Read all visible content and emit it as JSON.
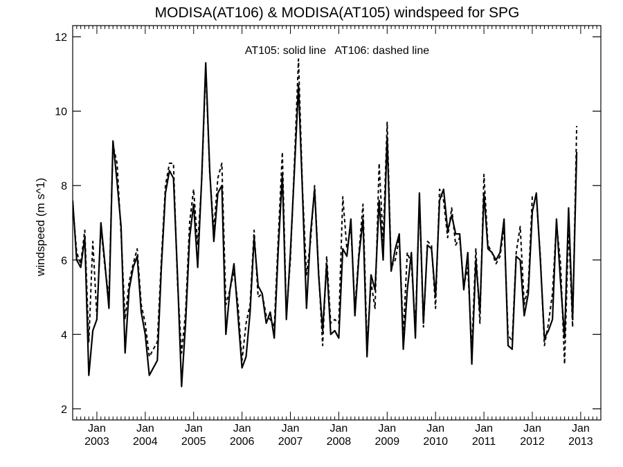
{
  "chart_data": {
    "type": "line",
    "title": "MODISA(AT106) & MODISA(AT105)  windspeed for SPG",
    "annotation": "AT105: solid line   AT106: dashed line",
    "ylabel": "windspeed (m s^1)",
    "xlabel": "",
    "ylim": [
      1.7,
      12.3
    ],
    "y_ticks": [
      2,
      4,
      6,
      8,
      10,
      12
    ],
    "x_range": [
      "2002-07",
      "2013-06"
    ],
    "x_ticks": [
      {
        "date": "2003-01",
        "month": "Jan",
        "year": "2003"
      },
      {
        "date": "2004-01",
        "month": "Jan",
        "year": "2004"
      },
      {
        "date": "2005-01",
        "month": "Jan",
        "year": "2005"
      },
      {
        "date": "2006-01",
        "month": "Jan",
        "year": "2006"
      },
      {
        "date": "2007-01",
        "month": "Jan",
        "year": "2007"
      },
      {
        "date": "2008-01",
        "month": "Jan",
        "year": "2008"
      },
      {
        "date": "2009-01",
        "month": "Jan",
        "year": "2009"
      },
      {
        "date": "2010-01",
        "month": "Jan",
        "year": "2010"
      },
      {
        "date": "2011-01",
        "month": "Jan",
        "year": "2011"
      },
      {
        "date": "2012-01",
        "month": "Jan",
        "year": "2012"
      },
      {
        "date": "2013-01",
        "month": "Jan",
        "year": "2013"
      }
    ],
    "grid": false,
    "start_date": "2002-07",
    "interval": "monthly",
    "series": [
      {
        "name": "AT105",
        "line_style": "solid",
        "values": [
          7.6,
          6.0,
          5.8,
          6.6,
          2.9,
          4.1,
          4.4,
          7.0,
          5.9,
          4.7,
          9.2,
          8.1,
          6.9,
          3.5,
          5.2,
          5.8,
          6.1,
          4.6,
          4.0,
          2.9,
          3.1,
          3.3,
          5.8,
          7.8,
          8.4,
          8.2,
          5.6,
          2.6,
          4.3,
          6.6,
          7.5,
          5.8,
          8.2,
          11.3,
          8.4,
          6.5,
          7.8,
          8.0,
          4.0,
          5.2,
          5.9,
          4.5,
          3.1,
          3.4,
          4.6,
          6.6,
          5.3,
          5.1,
          4.3,
          4.6,
          3.9,
          6.3,
          8.3,
          4.4,
          6.2,
          8.4,
          10.7,
          7.8,
          4.7,
          6.7,
          7.9,
          5.6,
          4.1,
          5.9,
          4.0,
          4.1,
          3.9,
          6.3,
          6.1,
          7.1,
          4.5,
          6.1,
          7.1,
          3.4,
          5.6,
          5.2,
          7.6,
          6.0,
          9.3,
          5.7,
          6.3,
          6.7,
          3.6,
          5.2,
          6.2,
          3.9,
          7.8,
          4.3,
          6.4,
          6.3,
          5.0,
          7.6,
          7.9,
          6.8,
          7.2,
          6.7,
          6.7,
          5.2,
          6.2,
          3.2,
          6.0,
          4.6,
          7.8,
          6.3,
          6.2,
          6.0,
          6.2,
          7.1,
          3.7,
          3.6,
          6.1,
          6.0,
          4.5,
          5.1,
          7.3,
          7.8,
          6.0,
          3.9,
          4.1,
          4.4,
          7.1,
          5.4,
          3.9,
          7.4,
          4.4,
          8.9
        ]
      },
      {
        "name": "AT106",
        "line_style": "dashed",
        "values": [
          7.5,
          6.2,
          5.9,
          6.8,
          3.8,
          6.5,
          4.5,
          6.9,
          5.8,
          5.0,
          9.1,
          8.6,
          6.7,
          4.4,
          5.4,
          5.9,
          6.3,
          4.8,
          4.3,
          3.4,
          3.6,
          3.8,
          6.0,
          8.0,
          8.6,
          8.6,
          5.4,
          3.5,
          4.6,
          7.0,
          7.9,
          6.4,
          8.1,
          11.2,
          8.3,
          6.8,
          8.2,
          8.6,
          4.8,
          5.2,
          5.7,
          4.8,
          3.3,
          4.3,
          4.8,
          6.8,
          5.0,
          5.1,
          4.5,
          4.4,
          4.2,
          6.6,
          8.9,
          4.5,
          6.0,
          8.6,
          11.4,
          7.9,
          5.6,
          6.5,
          8.0,
          5.7,
          3.7,
          6.1,
          4.3,
          4.4,
          4.3,
          7.7,
          6.3,
          6.9,
          4.7,
          6.2,
          7.5,
          3.7,
          5.4,
          4.7,
          8.6,
          6.5,
          9.7,
          5.8,
          6.0,
          6.6,
          4.0,
          6.2,
          5.9,
          4.2,
          7.6,
          4.2,
          6.5,
          6.4,
          4.7,
          7.9,
          7.6,
          6.6,
          7.4,
          6.4,
          6.6,
          5.3,
          5.8,
          3.6,
          6.3,
          4.3,
          8.3,
          6.4,
          6.2,
          5.9,
          6.1,
          6.9,
          4.0,
          3.8,
          6.2,
          6.9,
          4.8,
          5.3,
          7.7,
          7.7,
          6.1,
          3.7,
          4.3,
          5.1,
          7.0,
          5.9,
          3.2,
          6.9,
          4.2,
          9.6
        ]
      }
    ]
  }
}
